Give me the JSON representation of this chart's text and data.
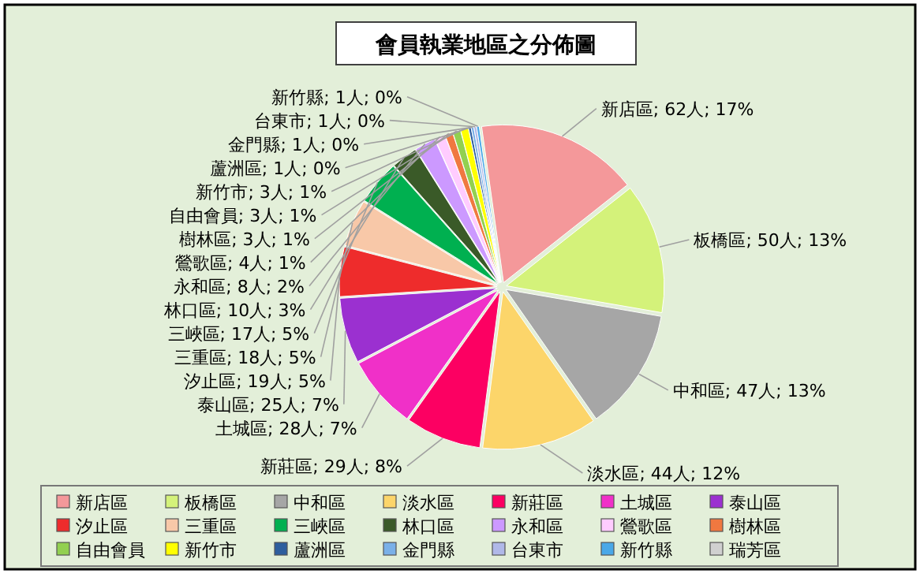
{
  "chart_data": {
    "type": "pie",
    "title": "會員執業地區之分佈圖",
    "categories": [
      "新店區",
      "板橋區",
      "中和區",
      "淡水區",
      "新莊區",
      "土城區",
      "泰山區",
      "汐止區",
      "三重區",
      "三峽區",
      "林口區",
      "永和區",
      "鶯歌區",
      "樹林區",
      "自由會員",
      "新竹市",
      "蘆洲區",
      "金門縣",
      "台東市",
      "新竹縣",
      "瑞芳區"
    ],
    "values": [
      62,
      50,
      47,
      44,
      29,
      28,
      25,
      19,
      18,
      17,
      10,
      8,
      4,
      3,
      3,
      3,
      1,
      1,
      1,
      1,
      0
    ],
    "colors": [
      "#f4989a",
      "#d4f27a",
      "#a6a6a6",
      "#fcd56a",
      "#fc0062",
      "#f030c8",
      "#9b30d0",
      "#ee2c2c",
      "#f8c8a8",
      "#00b050",
      "#3a5a28",
      "#cc99ff",
      "#ffccff",
      "#f07840",
      "#92d050",
      "#ffff00",
      "#2e5e9e",
      "#7ab0e8",
      "#b0b8e8",
      "#4aa8e8",
      "#d0d0d0"
    ],
    "value_labels": [
      "新店區; 62人; 17%",
      "板橋區; 50人; 13%",
      "中和區; 47人; 13%",
      "淡水區; 44人; 12%",
      "新莊區; 29人; 8%",
      "土城區; 28人; 7%",
      "泰山區; 25人; 7%",
      "汐止區; 19人; 5%",
      "三重區; 18人; 5%",
      "三峽區; 17人; 5%",
      "林口區; 10人; 3%",
      "永和區; 8人; 2%",
      "鶯歌區; 4人; 1%",
      "樹林區; 3人; 1%",
      "自由會員; 3人; 1%",
      "新竹市; 3人; 1%",
      "蘆洲區; 1人; 0%",
      "金門縣; 1人; 0%",
      "台東市; 1人; 0%",
      "新竹縣; 1人; 0%",
      null
    ],
    "legend": "bottom"
  }
}
